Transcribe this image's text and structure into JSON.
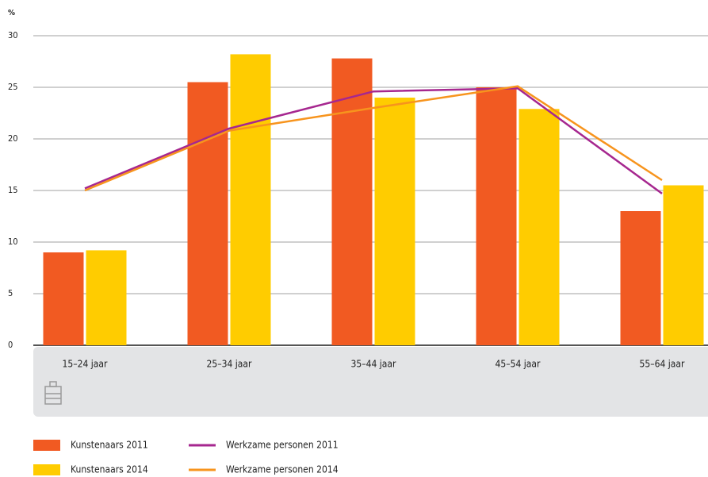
{
  "chart_data": {
    "type": "bar",
    "ylabel": "%",
    "categories": [
      "15–24 jaar",
      "25–34 jaar",
      "35–44 jaar",
      "45–54 jaar",
      "55–64 jaar"
    ],
    "series": [
      {
        "name": "Kunstenaars 2011",
        "type": "bar",
        "color": "#f15a22",
        "values": [
          9,
          25.5,
          27.8,
          25,
          13
        ]
      },
      {
        "name": "Kunstenaars 2014",
        "type": "bar",
        "color": "#ffcc00",
        "values": [
          9.2,
          28.2,
          24,
          22.9,
          15.5
        ]
      },
      {
        "name": "Werkzame personen 2011",
        "type": "line",
        "color": "#a6278f",
        "values": [
          15.2,
          21,
          24.6,
          24.9,
          14.7
        ]
      },
      {
        "name": "Werkzame personen 2014",
        "type": "line",
        "color": "#f7941d",
        "values": [
          15,
          20.8,
          23,
          25.1,
          16
        ]
      }
    ],
    "ylim": [
      0,
      30
    ],
    "yticks": [
      0,
      5,
      10,
      15,
      20,
      25,
      30
    ],
    "grid": true
  }
}
